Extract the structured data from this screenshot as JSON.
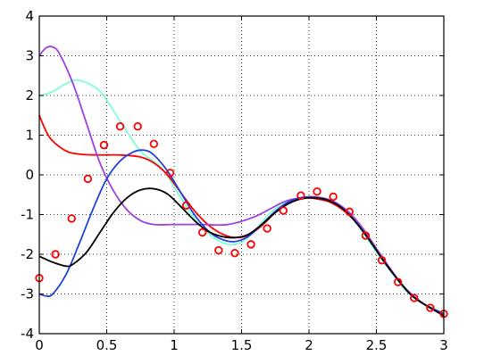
{
  "chart_data": {
    "type": "line",
    "title": "",
    "xlabel": "",
    "ylabel": "",
    "xlim": [
      0,
      3
    ],
    "ylim": [
      -4,
      4
    ],
    "grid": true,
    "legend": "none",
    "x_ticks": [
      0,
      0.5,
      1,
      1.5,
      2,
      2.5,
      3
    ],
    "x_tick_labels": [
      "0",
      "0.5",
      "1",
      "1.5",
      "2",
      "2.5",
      "3"
    ],
    "y_ticks": [
      -4,
      -3,
      -2,
      -1,
      0,
      1,
      2,
      3,
      4
    ],
    "y_tick_labels": [
      "-4",
      "-3",
      "-2",
      "-1",
      "0",
      "1",
      "2",
      "3",
      "4"
    ],
    "scatter": {
      "color": "#ff0000",
      "marker": "circle-open",
      "points": [
        [
          0.0,
          -2.6
        ],
        [
          0.12,
          -2.0
        ],
        [
          0.24,
          -1.1
        ],
        [
          0.36,
          -0.1
        ],
        [
          0.48,
          0.75
        ],
        [
          0.6,
          1.22
        ],
        [
          0.73,
          1.22
        ],
        [
          0.85,
          0.78
        ],
        [
          0.97,
          0.05
        ],
        [
          1.09,
          -0.77
        ],
        [
          1.21,
          -1.45
        ],
        [
          1.33,
          -1.9
        ],
        [
          1.45,
          -1.97
        ],
        [
          1.57,
          -1.75
        ],
        [
          1.69,
          -1.35
        ],
        [
          1.81,
          -0.9
        ],
        [
          1.94,
          -0.52
        ],
        [
          2.06,
          -0.42
        ],
        [
          2.18,
          -0.55
        ],
        [
          2.3,
          -0.93
        ],
        [
          2.42,
          -1.53
        ],
        [
          2.54,
          -2.15
        ],
        [
          2.66,
          -2.7
        ],
        [
          2.78,
          -3.1
        ],
        [
          2.9,
          -3.35
        ],
        [
          3.0,
          -3.5
        ]
      ]
    },
    "series": [
      {
        "color": "#7fffd4",
        "x": [
          0,
          0.1,
          0.2,
          0.3,
          0.45,
          0.6,
          0.75,
          0.9,
          1.0,
          1.1,
          1.2,
          1.3,
          1.4,
          1.5,
          1.6,
          1.7,
          1.8,
          1.9,
          2.0,
          2.1,
          2.2,
          2.3,
          2.4,
          2.5,
          2.6,
          2.7,
          2.8,
          2.9,
          3.0
        ],
        "y": [
          1.98,
          2.1,
          2.3,
          2.38,
          2.1,
          1.35,
          0.6,
          0.2,
          -0.3,
          -0.85,
          -1.3,
          -1.6,
          -1.75,
          -1.7,
          -1.4,
          -1.0,
          -0.75,
          -0.62,
          -0.58,
          -0.62,
          -0.75,
          -1.0,
          -1.45,
          -1.95,
          -2.4,
          -2.85,
          -3.15,
          -3.35,
          -3.5
        ]
      },
      {
        "color": "#ff0000",
        "x": [
          0,
          0.05,
          0.1,
          0.2,
          0.3,
          0.45,
          0.6,
          0.75,
          0.85,
          0.95,
          1.05,
          1.15,
          1.25,
          1.35,
          1.45,
          1.55,
          1.65,
          1.75,
          1.85,
          1.95,
          2.05,
          2.15,
          2.25,
          2.35,
          2.45,
          2.55,
          2.65,
          2.75,
          2.85,
          3.0
        ],
        "y": [
          1.5,
          1.1,
          0.85,
          0.6,
          0.52,
          0.5,
          0.5,
          0.45,
          0.3,
          0.0,
          -0.45,
          -0.9,
          -1.25,
          -1.48,
          -1.58,
          -1.52,
          -1.28,
          -0.95,
          -0.7,
          -0.58,
          -0.6,
          -0.68,
          -0.88,
          -1.2,
          -1.65,
          -2.15,
          -2.6,
          -3.0,
          -3.25,
          -3.5
        ]
      },
      {
        "color": "#a040e0",
        "x": [
          0,
          0.05,
          0.1,
          0.15,
          0.25,
          0.35,
          0.45,
          0.55,
          0.65,
          0.75,
          0.85,
          1.0,
          1.2,
          1.4,
          1.6,
          1.8,
          1.9,
          2.0,
          2.1,
          2.2,
          2.3,
          2.4,
          2.5,
          2.6,
          2.7,
          2.8,
          2.9,
          3.0
        ],
        "y": [
          3.0,
          3.2,
          3.22,
          3.05,
          2.3,
          1.3,
          0.3,
          -0.4,
          -0.88,
          -1.15,
          -1.25,
          -1.25,
          -1.25,
          -1.25,
          -1.05,
          -0.7,
          -0.6,
          -0.55,
          -0.58,
          -0.7,
          -0.95,
          -1.35,
          -1.85,
          -2.35,
          -2.8,
          -3.12,
          -3.35,
          -3.5
        ]
      },
      {
        "color": "#2040e0",
        "x": [
          0,
          0.05,
          0.1,
          0.2,
          0.3,
          0.4,
          0.5,
          0.6,
          0.7,
          0.78,
          0.85,
          0.95,
          1.05,
          1.15,
          1.25,
          1.35,
          1.45,
          1.55,
          1.65,
          1.75,
          1.85,
          1.95,
          2.05,
          2.15,
          2.25,
          2.35,
          2.45,
          2.55,
          2.65,
          2.75,
          2.85,
          3.0
        ],
        "y": [
          -3.0,
          -3.05,
          -3.0,
          -2.5,
          -1.7,
          -0.85,
          -0.1,
          0.35,
          0.58,
          0.62,
          0.5,
          0.1,
          -0.45,
          -1.0,
          -1.4,
          -1.62,
          -1.68,
          -1.55,
          -1.25,
          -0.92,
          -0.68,
          -0.57,
          -0.58,
          -0.65,
          -0.85,
          -1.2,
          -1.65,
          -2.15,
          -2.6,
          -3.0,
          -3.25,
          -3.5
        ]
      },
      {
        "color": "#000000",
        "x": [
          0,
          0.1,
          0.2,
          0.25,
          0.35,
          0.45,
          0.55,
          0.65,
          0.75,
          0.85,
          0.95,
          1.05,
          1.15,
          1.25,
          1.35,
          1.45,
          1.55,
          1.65,
          1.75,
          1.85,
          1.95,
          2.05,
          2.15,
          2.25,
          2.35,
          2.45,
          2.55,
          2.65,
          2.75,
          2.85,
          3.0
        ],
        "y": [
          -2.05,
          -2.2,
          -2.3,
          -2.25,
          -1.95,
          -1.45,
          -0.95,
          -0.58,
          -0.38,
          -0.35,
          -0.48,
          -0.8,
          -1.15,
          -1.42,
          -1.55,
          -1.58,
          -1.5,
          -1.25,
          -0.95,
          -0.72,
          -0.6,
          -0.58,
          -0.65,
          -0.85,
          -1.2,
          -1.65,
          -2.15,
          -2.6,
          -3.0,
          -3.25,
          -3.55
        ]
      }
    ]
  }
}
